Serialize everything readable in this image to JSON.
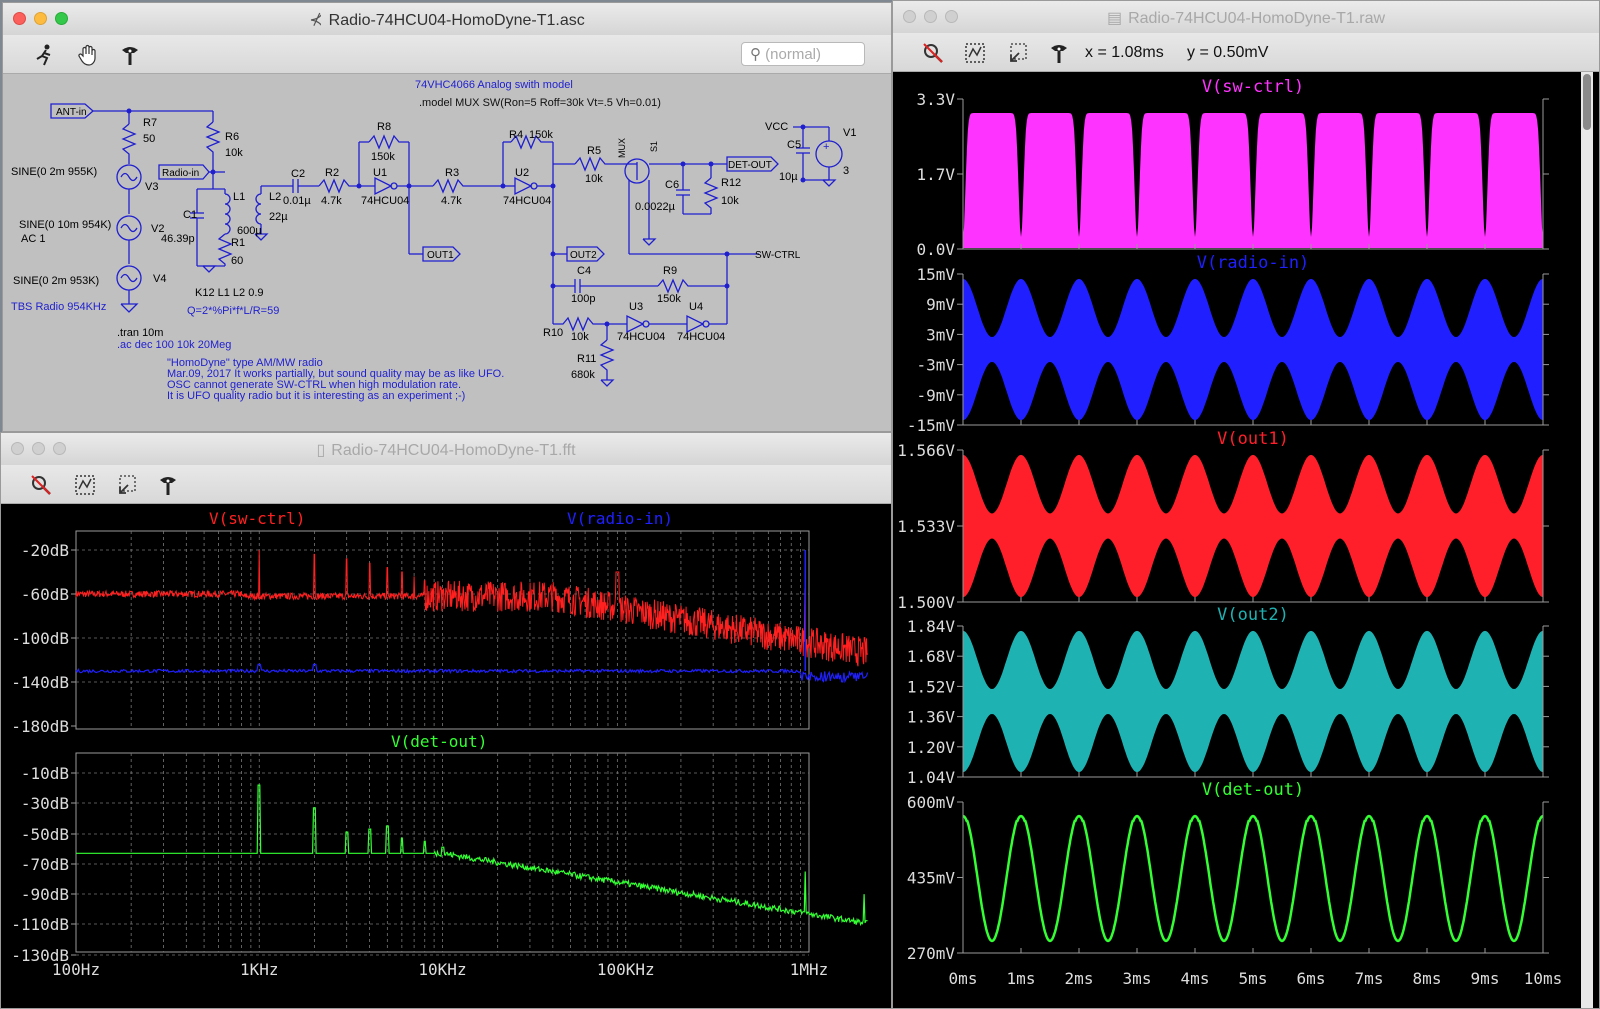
{
  "schematic": {
    "window_title": "Radio-74HCU04-HomoDyne-T1.asc",
    "search_placeholder": "(normal)",
    "labels": {
      "model_title": "74VHC4066 Analog swith model",
      "model_line": ".model MUX SW(Ron=5 Roff=30k Vt=.5 Vh=0.01)",
      "ant_in": "ANT-in",
      "radio_in": "Radio-in",
      "det_out": "DET-OUT",
      "out1": "OUT1",
      "out2": "OUT2",
      "sw_ctrl": "SW-CTRL",
      "vcc": "VCC",
      "mux": "MUX",
      "r7": "R7",
      "r7v": "50",
      "r6": "R6",
      "r6v": "10k",
      "r8": "R8",
      "r8v": "150k",
      "r4": "R4",
      "r4v": "150k",
      "r5": "R5",
      "r5v": "10k",
      "r2": "R2",
      "r2v": "4.7k",
      "r3": "R3",
      "r3v": "4.7k",
      "r1": "R1",
      "r1v": "60",
      "r9": "R9",
      "r9v": "150k",
      "r10": "R10",
      "r10v": "10k",
      "r11": "R11",
      "r11v": "680k",
      "r12": "R12",
      "r12v": "10k",
      "c1": "C1",
      "c1v": "46.39p",
      "c2": "C2",
      "c2v": "0.01µ",
      "c4": "C4",
      "c4v": "100p",
      "c5": "C5",
      "c5v": "10µ",
      "c6": "C6",
      "c6v": "0.0022µ",
      "l1": "L1",
      "l1v": "600µ",
      "l2": "L2",
      "l2v": "22µ",
      "u1": "U1",
      "u1v": "74HCU04",
      "u2": "U2",
      "u2v": "74HCU04",
      "u3": "U3",
      "u3v": "74HCU04",
      "u4": "U4",
      "u4v": "74HCU04",
      "s1": "S1",
      "v1": "V1",
      "v1v": "3",
      "v2": "V2",
      "v3": "V3",
      "v4": "V4",
      "v3src": "SINE(0 2m 955K)",
      "v2src": "SINE(0 10m 954K)",
      "v2ac": "AC 1",
      "v4src": "SINE(0 2m 953K)",
      "tbs": "TBS Radio 954KHz",
      "k12": "K12 L1 L2 0.9",
      "q": "Q=2*%Pi*f*L/R=59",
      "tran": ".tran 10m",
      "ac": ".ac dec 100 10k 20Meg",
      "note1": "\"HomoDyne\" type AM/MW radio",
      "note2": "Mar.09, 2017 It works partially, but sound quality may be as like UFO.",
      "note3": "OSC cannot generate SW-CTRL when high modulation rate.",
      "note4": "It is UFO quality radio but it is interesting as an experiment ;-)"
    }
  },
  "fft": {
    "window_title": "Radio-74HCU04-HomoDyne-T1.fft",
    "traces_top": [
      "V(sw-ctrl)",
      "V(radio-in)"
    ],
    "traces_bottom": [
      "V(det-out)"
    ],
    "y_top": [
      "-20dB",
      "-60dB",
      "-100dB",
      "-140dB",
      "-180dB"
    ],
    "y_bottom": [
      "-10dB",
      "-30dB",
      "-50dB",
      "-70dB",
      "-90dB",
      "-110dB",
      "-130dB"
    ],
    "x_ticks": [
      "100Hz",
      "1KHz",
      "10KHz",
      "100KHz",
      "1MHz"
    ]
  },
  "raw": {
    "window_title": "Radio-74HCU04-HomoDyne-T1.raw",
    "cursor_x": "x = 1.08ms",
    "cursor_y": "y = 0.50mV",
    "panes": [
      {
        "name": "V(sw-ctrl)",
        "ticks": [
          "3.3V",
          "1.7V",
          "0.0V"
        ]
      },
      {
        "name": "V(radio-in)",
        "ticks": [
          "15mV",
          "9mV",
          "3mV",
          "-3mV",
          "-9mV",
          "-15mV"
        ]
      },
      {
        "name": "V(out1)",
        "ticks": [
          "1.566V",
          "1.533V",
          "1.500V"
        ]
      },
      {
        "name": "V(out2)",
        "ticks": [
          "1.84V",
          "1.68V",
          "1.52V",
          "1.36V",
          "1.20V",
          "1.04V"
        ]
      },
      {
        "name": "V(det-out)",
        "ticks": [
          "600mV",
          "435mV",
          "270mV"
        ]
      }
    ],
    "x_ticks": [
      "0ms",
      "1ms",
      "2ms",
      "3ms",
      "4ms",
      "5ms",
      "6ms",
      "7ms",
      "8ms",
      "9ms",
      "10ms"
    ]
  },
  "colors": {
    "plot_bg": "#000000",
    "sw_ctrl": "#ff33ff",
    "radio_in": "#1f1fff",
    "out1": "#ff1f2a",
    "out2": "#1fb2b2",
    "det_out": "#33ff33",
    "fft_red": "#ff2020",
    "fft_blue": "#2020ff",
    "schematic_wire": "#1f1fcf",
    "schematic_bg": "#c0c0c0"
  },
  "icons": [
    "run-icon",
    "halt-hand-icon",
    "probe-icon",
    "zoom-cancel-icon",
    "autorange-icon",
    "undo-zoom-icon"
  ]
}
